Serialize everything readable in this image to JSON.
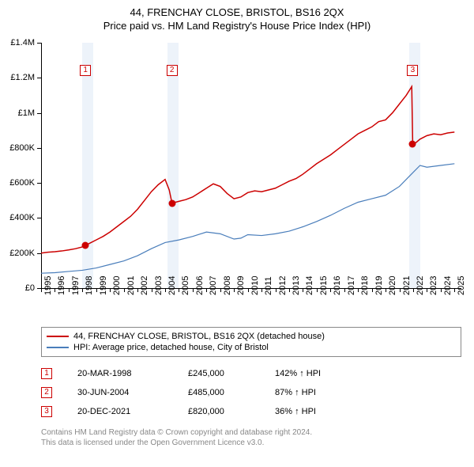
{
  "title_line1": "44, FRENCHAY CLOSE, BRISTOL, BS16 2QX",
  "title_line2": "Price paid vs. HM Land Registry's House Price Index (HPI)",
  "chart": {
    "type": "line",
    "background_color": "#ffffff",
    "xlim": [
      1995,
      2025.5
    ],
    "ylim": [
      0,
      1400000
    ],
    "ytick_step": 200000,
    "ytick_labels": [
      "£0",
      "£200K",
      "£400K",
      "£600K",
      "£800K",
      "£1M",
      "£1.2M",
      "£1.4M"
    ],
    "xticks": [
      1995,
      1996,
      1997,
      1998,
      1999,
      2000,
      2001,
      2002,
      2003,
      2004,
      2005,
      2006,
      2007,
      2008,
      2009,
      2010,
      2011,
      2012,
      2013,
      2014,
      2015,
      2016,
      2017,
      2018,
      2019,
      2020,
      2021,
      2022,
      2023,
      2024,
      2025
    ],
    "shaded_bands": [
      {
        "from": 1998.0,
        "to": 1998.8
      },
      {
        "from": 2004.2,
        "to": 2005.0
      },
      {
        "from": 2021.7,
        "to": 2022.5
      }
    ],
    "series": [
      {
        "name": "price_paid",
        "color": "#cc0000",
        "width": 1.5,
        "points": [
          [
            1995.0,
            200000
          ],
          [
            1995.5,
            205000
          ],
          [
            1996.0,
            208000
          ],
          [
            1996.5,
            212000
          ],
          [
            1997.0,
            218000
          ],
          [
            1997.5,
            225000
          ],
          [
            1998.0,
            235000
          ],
          [
            1998.22,
            245000
          ],
          [
            1998.5,
            255000
          ],
          [
            1999.0,
            275000
          ],
          [
            1999.5,
            295000
          ],
          [
            2000.0,
            320000
          ],
          [
            2000.5,
            350000
          ],
          [
            2001.0,
            380000
          ],
          [
            2001.5,
            410000
          ],
          [
            2002.0,
            450000
          ],
          [
            2002.5,
            500000
          ],
          [
            2003.0,
            550000
          ],
          [
            2003.5,
            590000
          ],
          [
            2004.0,
            620000
          ],
          [
            2004.3,
            560000
          ],
          [
            2004.5,
            485000
          ],
          [
            2005.0,
            495000
          ],
          [
            2005.5,
            505000
          ],
          [
            2006.0,
            520000
          ],
          [
            2006.5,
            545000
          ],
          [
            2007.0,
            570000
          ],
          [
            2007.5,
            595000
          ],
          [
            2008.0,
            580000
          ],
          [
            2008.5,
            540000
          ],
          [
            2009.0,
            510000
          ],
          [
            2009.5,
            520000
          ],
          [
            2010.0,
            545000
          ],
          [
            2010.5,
            555000
          ],
          [
            2011.0,
            550000
          ],
          [
            2011.5,
            560000
          ],
          [
            2012.0,
            570000
          ],
          [
            2012.5,
            590000
          ],
          [
            2013.0,
            610000
          ],
          [
            2013.5,
            625000
          ],
          [
            2014.0,
            650000
          ],
          [
            2014.5,
            680000
          ],
          [
            2015.0,
            710000
          ],
          [
            2015.5,
            735000
          ],
          [
            2016.0,
            760000
          ],
          [
            2016.5,
            790000
          ],
          [
            2017.0,
            820000
          ],
          [
            2017.5,
            850000
          ],
          [
            2018.0,
            880000
          ],
          [
            2018.5,
            900000
          ],
          [
            2019.0,
            920000
          ],
          [
            2019.5,
            950000
          ],
          [
            2020.0,
            960000
          ],
          [
            2020.5,
            1000000
          ],
          [
            2021.0,
            1050000
          ],
          [
            2021.5,
            1100000
          ],
          [
            2021.9,
            1150000
          ],
          [
            2021.97,
            820000
          ],
          [
            2022.2,
            830000
          ],
          [
            2022.5,
            850000
          ],
          [
            2023.0,
            870000
          ],
          [
            2023.5,
            880000
          ],
          [
            2024.0,
            875000
          ],
          [
            2024.5,
            885000
          ],
          [
            2025.0,
            890000
          ]
        ]
      },
      {
        "name": "hpi",
        "color": "#4a7ebb",
        "width": 1.2,
        "points": [
          [
            1995.0,
            85000
          ],
          [
            1996.0,
            88000
          ],
          [
            1997.0,
            95000
          ],
          [
            1998.0,
            102000
          ],
          [
            1999.0,
            115000
          ],
          [
            2000.0,
            135000
          ],
          [
            2001.0,
            155000
          ],
          [
            2002.0,
            185000
          ],
          [
            2003.0,
            225000
          ],
          [
            2004.0,
            260000
          ],
          [
            2005.0,
            275000
          ],
          [
            2006.0,
            295000
          ],
          [
            2007.0,
            320000
          ],
          [
            2008.0,
            310000
          ],
          [
            2009.0,
            280000
          ],
          [
            2009.5,
            285000
          ],
          [
            2010.0,
            305000
          ],
          [
            2011.0,
            300000
          ],
          [
            2012.0,
            310000
          ],
          [
            2013.0,
            325000
          ],
          [
            2014.0,
            350000
          ],
          [
            2015.0,
            380000
          ],
          [
            2016.0,
            415000
          ],
          [
            2017.0,
            455000
          ],
          [
            2018.0,
            490000
          ],
          [
            2019.0,
            510000
          ],
          [
            2020.0,
            530000
          ],
          [
            2021.0,
            580000
          ],
          [
            2022.0,
            660000
          ],
          [
            2022.5,
            700000
          ],
          [
            2023.0,
            690000
          ],
          [
            2024.0,
            700000
          ],
          [
            2025.0,
            710000
          ]
        ]
      }
    ],
    "sale_markers": [
      {
        "n": "1",
        "x": 1998.22,
        "y": 245000,
        "box_y": 1240000
      },
      {
        "n": "2",
        "x": 2004.5,
        "y": 485000,
        "box_y": 1240000
      },
      {
        "n": "3",
        "x": 2021.97,
        "y": 820000,
        "box_y": 1240000
      }
    ]
  },
  "legend": {
    "items": [
      {
        "color": "#cc0000",
        "label": "44, FRENCHAY CLOSE, BRISTOL, BS16 2QX (detached house)"
      },
      {
        "color": "#4a7ebb",
        "label": "HPI: Average price, detached house, City of Bristol"
      }
    ]
  },
  "sales": [
    {
      "n": "1",
      "date": "20-MAR-1998",
      "price": "£245,000",
      "pct": "142% ↑ HPI"
    },
    {
      "n": "2",
      "date": "30-JUN-2004",
      "price": "£485,000",
      "pct": "87% ↑ HPI"
    },
    {
      "n": "3",
      "date": "20-DEC-2021",
      "price": "£820,000",
      "pct": "36% ↑ HPI"
    }
  ],
  "footer_line1": "Contains HM Land Registry data © Crown copyright and database right 2024.",
  "footer_line2": "This data is licensed under the Open Government Licence v3.0."
}
